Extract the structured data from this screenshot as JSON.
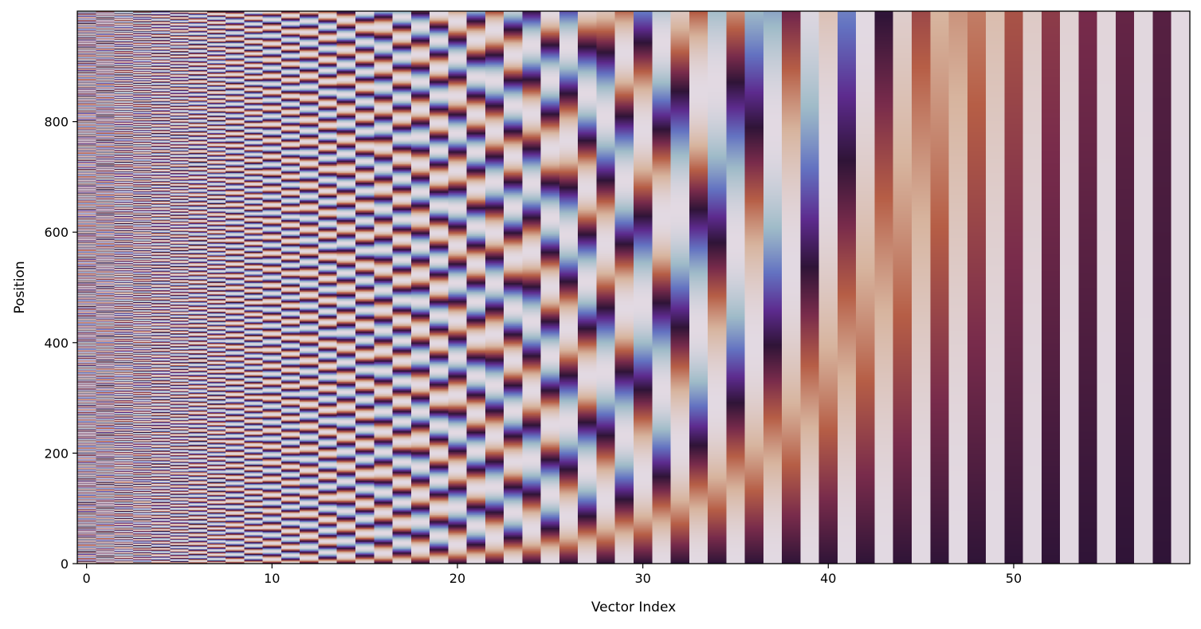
{
  "chart_data": {
    "type": "heatmap",
    "title": "",
    "xlabel": "Vector Index",
    "ylabel": "Position",
    "x_ticks": [
      0,
      10,
      20,
      30,
      40,
      50
    ],
    "y_ticks": [
      0,
      200,
      400,
      600,
      800
    ],
    "xlim": [
      -0.5,
      59.5
    ],
    "ylim": [
      0,
      1000
    ],
    "y_origin": "lower",
    "n_columns": 60,
    "n_positions": 1000,
    "encoding": "sinusoidal positional encoding: even index 2i = sin(pos / 10000^(2i/60)), odd index 2i+1 = cos(pos / 10000^(2i/60))",
    "value_range": [
      -1,
      1
    ],
    "colormap": "twilight",
    "colormap_stops": [
      "#e2d9e2",
      "#9fbbc8",
      "#6372c1",
      "#5d2b8e",
      "#2f1437",
      "#782b4b",
      "#b65e46",
      "#d7b49e",
      "#e2d9e2"
    ],
    "grid": false,
    "legend": "none"
  }
}
